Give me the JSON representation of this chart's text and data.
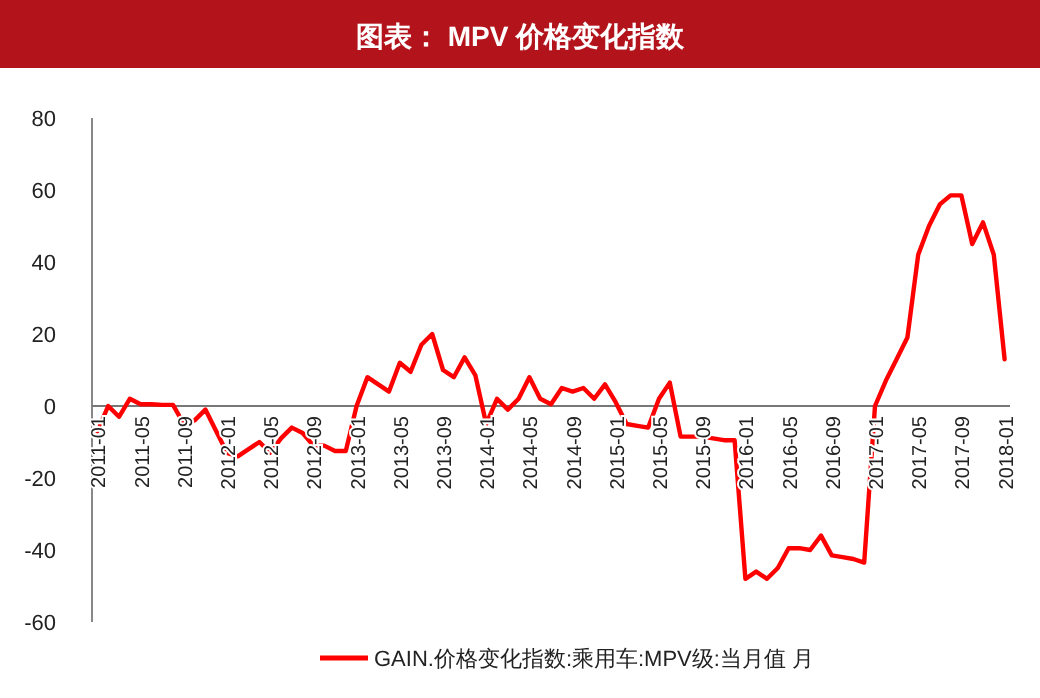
{
  "chart_data": {
    "type": "line",
    "title": "图表： MPV 价格变化指数",
    "categories": [
      "2011-01",
      null,
      null,
      null,
      "2011-05",
      null,
      null,
      null,
      "2011-09",
      null,
      null,
      null,
      "2012-01",
      null,
      null,
      null,
      "2012-05",
      null,
      null,
      null,
      "2012-09",
      null,
      null,
      null,
      "2013-01",
      null,
      null,
      null,
      "2013-05",
      null,
      null,
      null,
      "2013-09",
      null,
      null,
      null,
      "2014-01",
      null,
      null,
      null,
      "2014-05",
      null,
      null,
      null,
      "2014-09",
      null,
      null,
      null,
      "2015-01",
      null,
      null,
      null,
      "2015-05",
      null,
      null,
      null,
      "2015-09",
      null,
      null,
      null,
      "2016-01",
      null,
      null,
      null,
      "2016-05",
      null,
      null,
      null,
      "2016-09",
      null,
      null,
      null,
      "2017-01",
      null,
      null,
      null,
      "2017-05",
      null,
      null,
      null,
      "2017-09",
      null,
      null,
      null,
      "2018-01"
    ],
    "series": [
      {
        "name": "GAIN.价格变化指数:乘用车:MPV级:当月值 月",
        "color": "#ff0000",
        "values": [
          -7,
          0,
          -3,
          2,
          0.5,
          0.5,
          0.3,
          0.3,
          -5,
          -4,
          -1,
          -7,
          -13,
          -14,
          -12,
          -10,
          -13,
          -9,
          -6,
          -7.5,
          -11,
          -11,
          -12.5,
          -12.5,
          0,
          8,
          6,
          4,
          12,
          9.5,
          17,
          20,
          10,
          8,
          13.5,
          8.5,
          -5,
          2,
          -1,
          2,
          8,
          2,
          0.5,
          5,
          4,
          5,
          2,
          6,
          1,
          -5,
          -5.5,
          -6,
          2,
          6.5,
          -8.5,
          -8.5,
          -8.5,
          -9,
          -9.5,
          -9.5,
          -48,
          -46,
          -48,
          -45,
          -39.5,
          -39.5,
          -40,
          -36,
          -41.5,
          -42,
          -42.5,
          -43.5,
          0,
          7,
          13,
          19,
          42,
          50,
          56,
          58.5,
          58.5,
          45,
          51,
          42,
          13
        ]
      }
    ],
    "ylim": [
      -60,
      80
    ],
    "yticks": [
      -60,
      -40,
      -20,
      0,
      20,
      40,
      60,
      80
    ],
    "legend": "bottom",
    "grid": false,
    "marker": "none",
    "line_style": "solid"
  }
}
